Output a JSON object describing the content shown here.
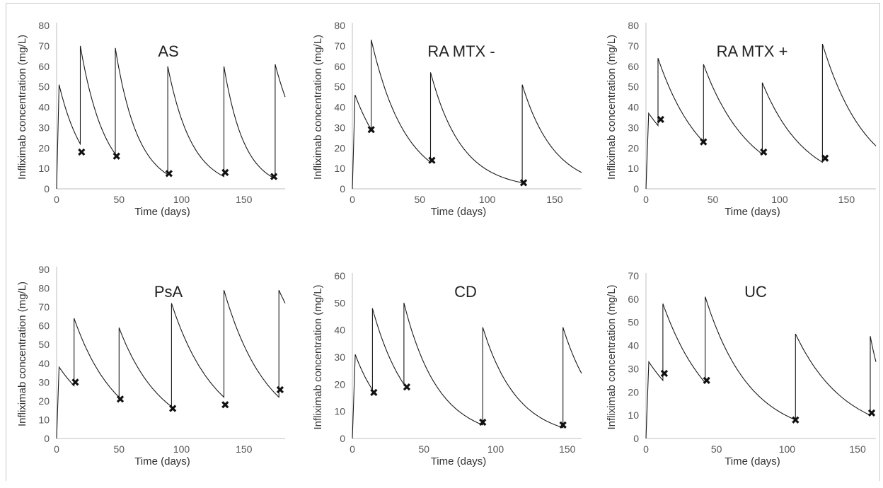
{
  "chart_data": [
    {
      "type": "line",
      "title": "AS",
      "xlabel": "Time (days)",
      "ylabel": "Infliximab concentration (mg/L)",
      "xlim": [
        0,
        183
      ],
      "ylim": [
        0,
        80
      ],
      "xticks": [
        0,
        50,
        100,
        150
      ],
      "yticks": [
        0,
        10,
        20,
        30,
        40,
        50,
        60,
        70,
        80
      ],
      "series": [
        {
          "type": "line",
          "x": [
            0,
            2,
            19,
            19,
            47,
            47,
            89,
            89,
            134,
            134,
            175,
            175,
            183
          ],
          "y": [
            0,
            51,
            22,
            70,
            17,
            69,
            7,
            60,
            6,
            60,
            5,
            61,
            45
          ]
        },
        {
          "type": "scatter",
          "x": [
            20,
            48,
            90,
            135,
            174
          ],
          "y": [
            18,
            16,
            7.5,
            8,
            6
          ]
        }
      ]
    },
    {
      "type": "line",
      "title": "RA MTX -",
      "xlabel": "Time (days)",
      "ylabel": "Infliximab concentration (mg/L)",
      "xlim": [
        0,
        170
      ],
      "ylim": [
        0,
        80
      ],
      "xticks": [
        0,
        50,
        100,
        150
      ],
      "yticks": [
        0,
        10,
        20,
        30,
        40,
        50,
        60,
        70,
        80
      ],
      "series": [
        {
          "type": "line",
          "x": [
            0,
            2,
            14,
            14,
            58,
            58,
            126,
            126,
            170
          ],
          "y": [
            0,
            46,
            29,
            73,
            13,
            57,
            3,
            51,
            8
          ]
        },
        {
          "type": "scatter",
          "x": [
            14,
            59,
            127
          ],
          "y": [
            29,
            14,
            3
          ]
        }
      ]
    },
    {
      "type": "line",
      "title": "RA MTX +",
      "xlabel": "Time (days)",
      "ylabel": "Infliximab concentration (mg/L)",
      "xlim": [
        0,
        172
      ],
      "ylim": [
        0,
        80
      ],
      "xticks": [
        0,
        50,
        100,
        150
      ],
      "yticks": [
        0,
        10,
        20,
        30,
        40,
        50,
        60,
        70,
        80
      ],
      "series": [
        {
          "type": "line",
          "x": [
            0,
            2,
            9,
            9,
            43,
            43,
            87,
            87,
            132,
            132,
            172
          ],
          "y": [
            0,
            37,
            31,
            64,
            23,
            61,
            17,
            52,
            13,
            71,
            21
          ]
        },
        {
          "type": "scatter",
          "x": [
            11,
            43,
            88,
            134
          ],
          "y": [
            34,
            23,
            18,
            15
          ]
        }
      ]
    },
    {
      "type": "line",
      "title": "PsA",
      "xlabel": "Time (days)",
      "ylabel": "Infliximab concentration (mg/L)",
      "xlim": [
        0,
        183
      ],
      "ylim": [
        0,
        90
      ],
      "xticks": [
        0,
        50,
        100,
        150
      ],
      "yticks": [
        0,
        10,
        20,
        30,
        40,
        50,
        60,
        70,
        80,
        90
      ],
      "series": [
        {
          "type": "line",
          "x": [
            0,
            2,
            14,
            14,
            50,
            50,
            92,
            92,
            134,
            134,
            178,
            178,
            183
          ],
          "y": [
            0,
            38,
            28,
            64,
            22,
            59,
            17,
            72,
            22,
            79,
            22,
            79,
            72
          ]
        },
        {
          "type": "scatter",
          "x": [
            15,
            51,
            93,
            135,
            179
          ],
          "y": [
            30,
            21,
            16,
            18,
            26
          ]
        }
      ]
    },
    {
      "type": "line",
      "title": "CD",
      "xlabel": "Time (days)",
      "ylabel": "Infliximab concentration (mg/L)",
      "xlim": [
        0,
        160
      ],
      "ylim": [
        0,
        60
      ],
      "xticks": [
        0,
        50,
        100,
        150
      ],
      "yticks": [
        0,
        10,
        20,
        30,
        40,
        50,
        60
      ],
      "series": [
        {
          "type": "line",
          "x": [
            0,
            2,
            14,
            14,
            36,
            36,
            91,
            91,
            147,
            147,
            160
          ],
          "y": [
            0,
            31,
            18,
            48,
            20,
            50,
            5,
            41,
            4,
            41,
            24
          ]
        },
        {
          "type": "scatter",
          "x": [
            15,
            38,
            91,
            147
          ],
          "y": [
            17,
            19,
            6,
            5
          ]
        }
      ]
    },
    {
      "type": "line",
      "title": "UC",
      "xlabel": "Time (days)",
      "ylabel": "Infliximab concentration (mg/L)",
      "xlim": [
        0,
        163
      ],
      "ylim": [
        0,
        70
      ],
      "xticks": [
        0,
        50,
        100,
        150
      ],
      "yticks": [
        0,
        10,
        20,
        30,
        40,
        50,
        60,
        70
      ],
      "series": [
        {
          "type": "line",
          "x": [
            0,
            2,
            12,
            12,
            42,
            42,
            106,
            106,
            159,
            159,
            163
          ],
          "y": [
            0,
            33,
            25,
            58,
            24,
            61,
            8,
            45,
            10,
            44,
            33
          ]
        },
        {
          "type": "scatter",
          "x": [
            13,
            43,
            106,
            160
          ],
          "y": [
            28,
            25,
            8,
            11
          ]
        }
      ]
    }
  ]
}
